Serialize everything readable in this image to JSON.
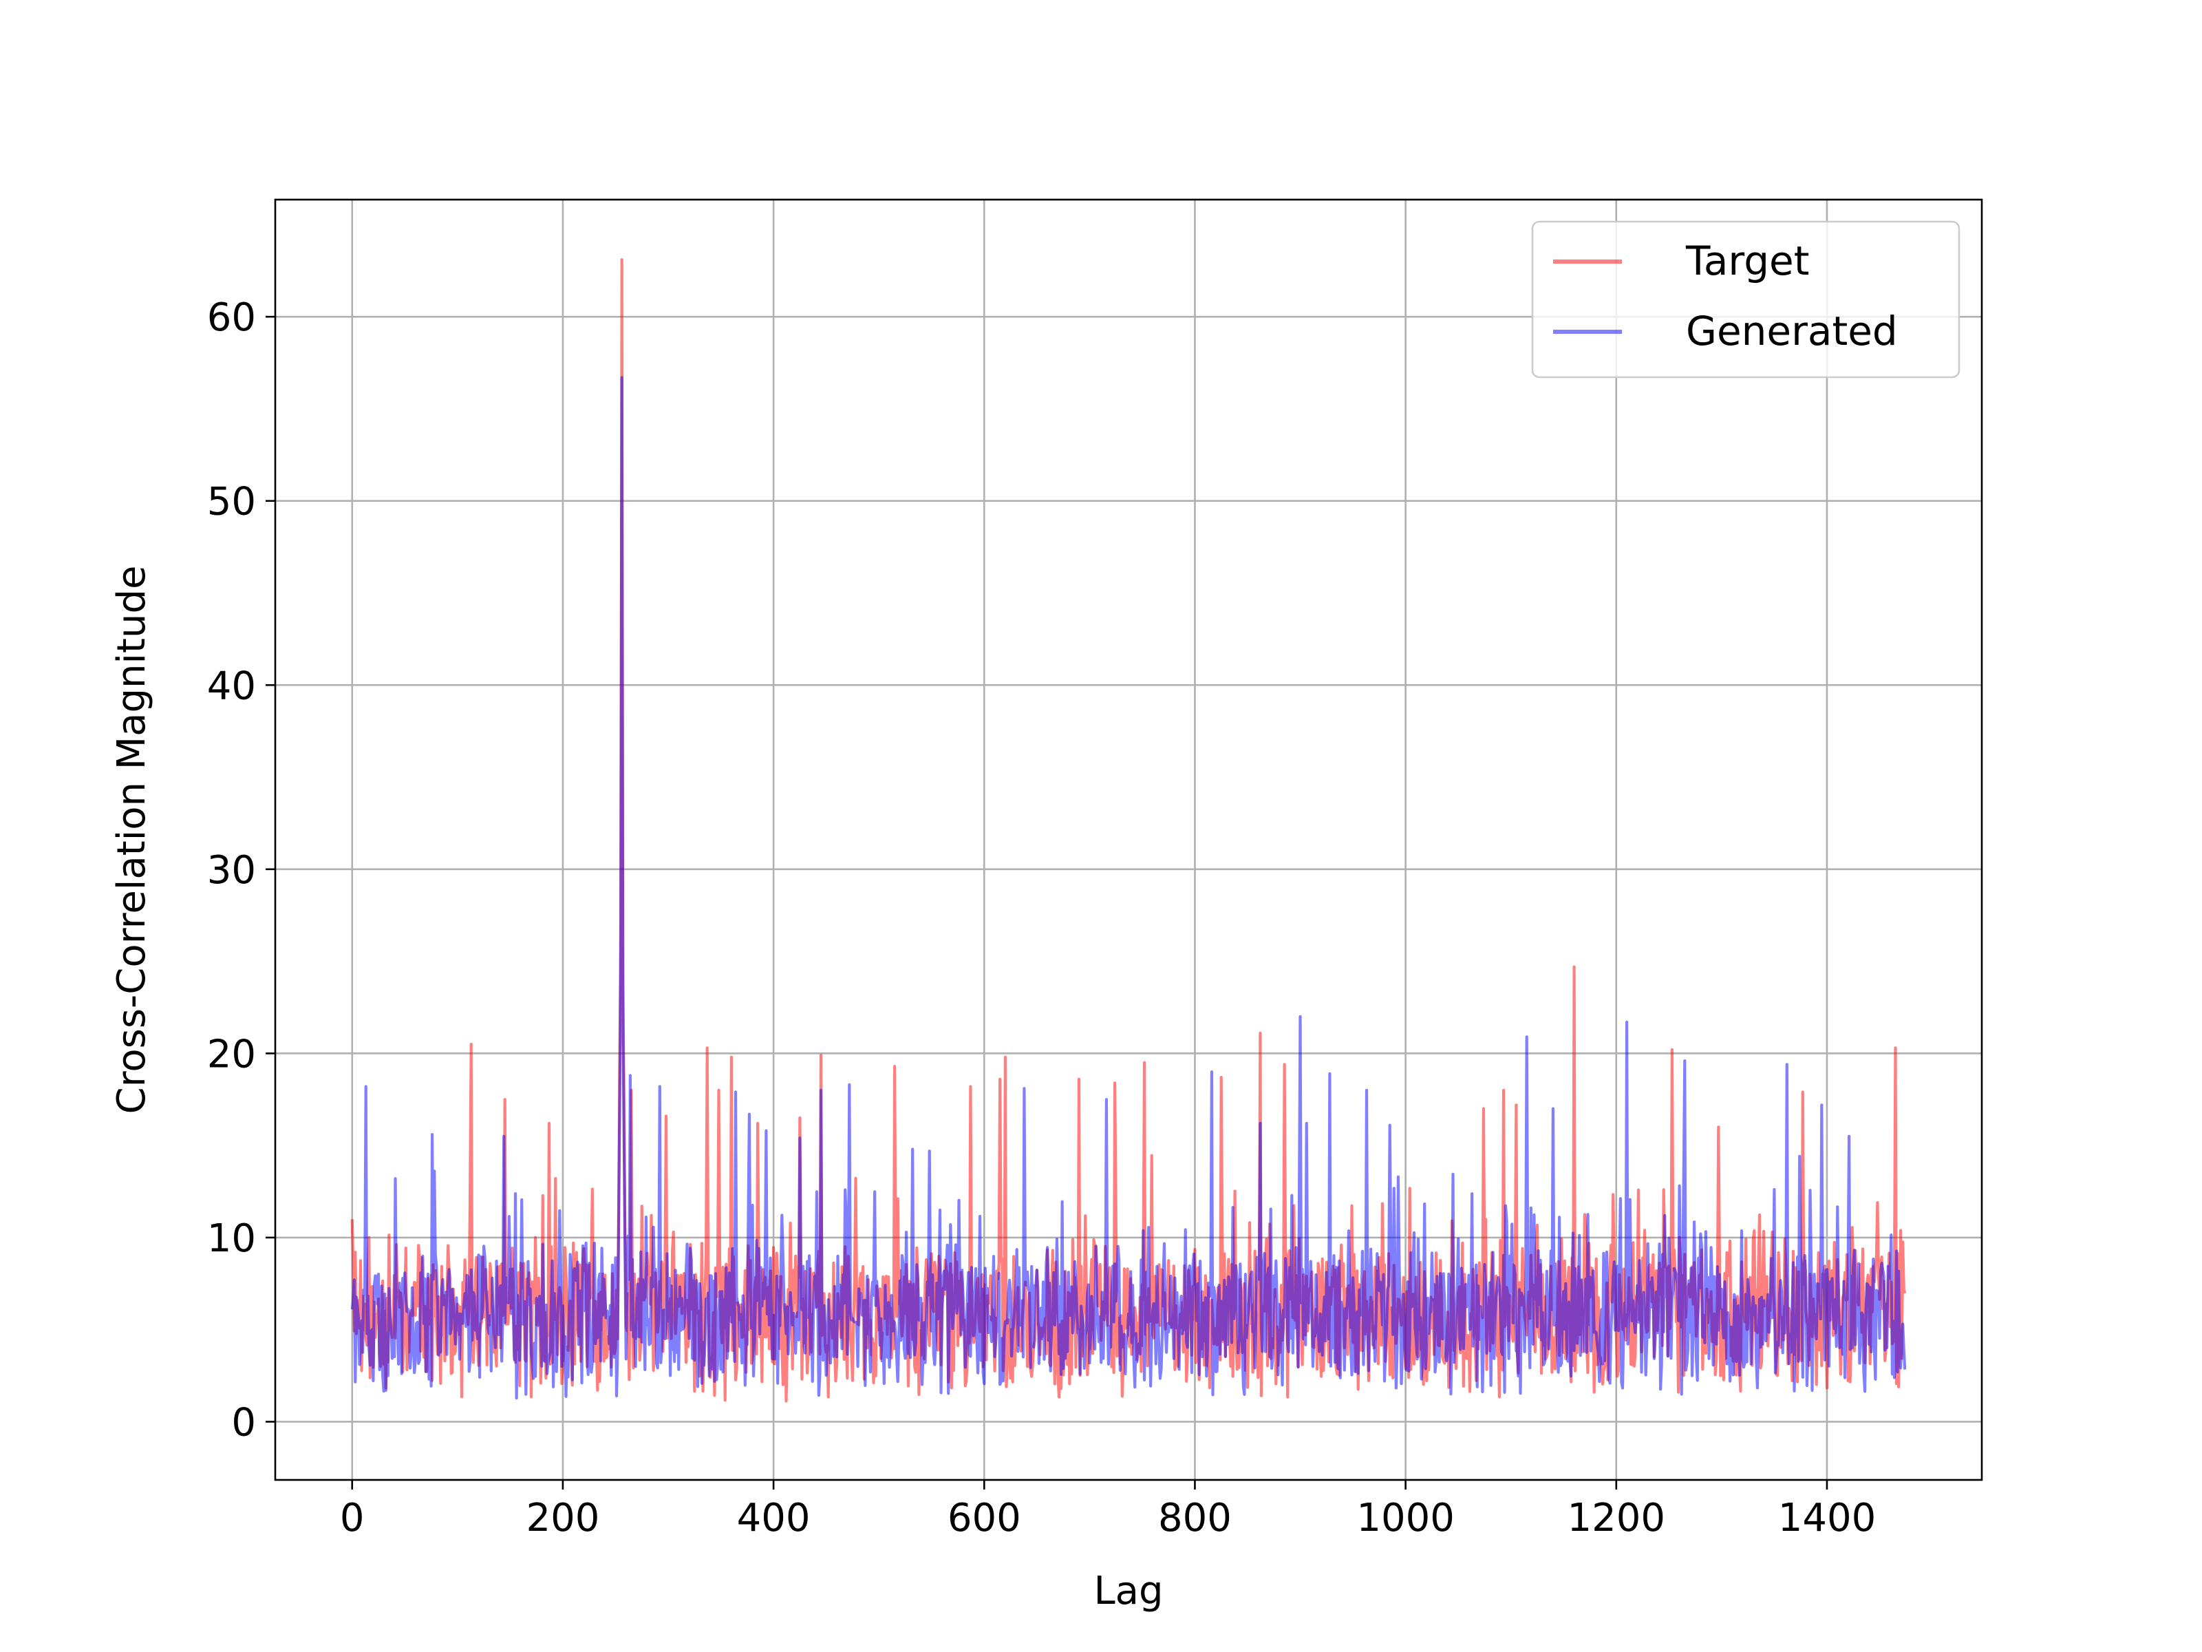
{
  "chart_data": {
    "type": "line",
    "title": "",
    "xlabel": "Lag",
    "ylabel": "Cross-Correlation Magnitude",
    "xlim": [
      -73,
      1547
    ],
    "ylim": [
      -3.16,
      66.36
    ],
    "x_ticks": [
      0,
      200,
      400,
      600,
      800,
      1000,
      1200,
      1400
    ],
    "y_ticks": [
      0,
      10,
      20,
      30,
      40,
      50,
      60
    ],
    "grid": true,
    "legend": "top-right",
    "x_domain": [
      0,
      1474
    ],
    "series": [
      {
        "name": "Target",
        "color": "#ff0000",
        "opacity": 0.5,
        "peaks": [
          [
            0,
            11.0
          ],
          [
            113,
            20.5
          ],
          [
            145,
            17.5
          ],
          [
            187,
            16.2
          ],
          [
            256,
            63.1
          ],
          [
            265,
            18.0
          ],
          [
            298,
            16.6
          ],
          [
            337,
            20.3
          ],
          [
            348,
            18.0
          ],
          [
            360,
            19.8
          ],
          [
            385,
            16.2
          ],
          [
            425,
            16.5
          ],
          [
            445,
            19.9
          ],
          [
            515,
            19.3
          ],
          [
            587,
            18.2
          ],
          [
            615,
            18.6
          ],
          [
            620,
            19.8
          ],
          [
            690,
            18.6
          ],
          [
            724,
            18.4
          ],
          [
            752,
            19.5
          ],
          [
            825,
            18.7
          ],
          [
            862,
            21.1
          ],
          [
            885,
            19.4
          ],
          [
            1074,
            17.0
          ],
          [
            1093,
            18.0
          ],
          [
            1105,
            17.2
          ],
          [
            1160,
            24.7
          ],
          [
            1253,
            20.2
          ],
          [
            1297,
            16.0
          ],
          [
            1377,
            17.9
          ],
          [
            1465,
            20.3
          ]
        ],
        "baseline_mean": 5.6,
        "baseline_spread": 4.6
      },
      {
        "name": "Generated",
        "color": "#0000ff",
        "opacity": 0.5,
        "peaks": [
          [
            13,
            18.2
          ],
          [
            76,
            15.6
          ],
          [
            144,
            15.5
          ],
          [
            256,
            56.7
          ],
          [
            264,
            18.8
          ],
          [
            292,
            18.2
          ],
          [
            364,
            17.9
          ],
          [
            377,
            16.7
          ],
          [
            393,
            15.8
          ],
          [
            425,
            15.4
          ],
          [
            445,
            18.0
          ],
          [
            472,
            18.3
          ],
          [
            532,
            14.8
          ],
          [
            548,
            14.7
          ],
          [
            638,
            18.1
          ],
          [
            716,
            17.5
          ],
          [
            816,
            19.0
          ],
          [
            862,
            16.2
          ],
          [
            900,
            22.0
          ],
          [
            906,
            16.2
          ],
          [
            928,
            18.9
          ],
          [
            963,
            18.0
          ],
          [
            985,
            16.1
          ],
          [
            1115,
            20.9
          ],
          [
            1140,
            17.0
          ],
          [
            1210,
            21.7
          ],
          [
            1265,
            19.6
          ],
          [
            1362,
            19.4
          ],
          [
            1395,
            17.2
          ],
          [
            1421,
            15.5
          ]
        ],
        "baseline_mean": 5.5,
        "baseline_spread": 4.4
      }
    ]
  }
}
